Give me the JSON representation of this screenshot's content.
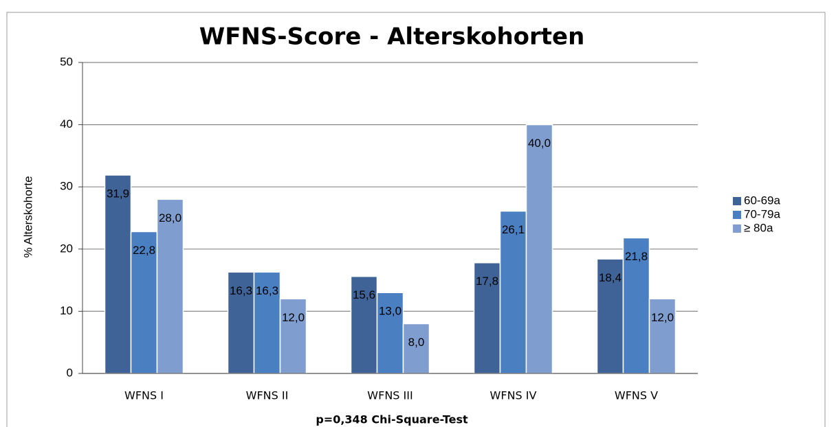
{
  "chart_data": {
    "type": "bar",
    "title": "WFNS-Score - Alterskohorten",
    "ylabel": "% Alterskohorte",
    "xlabel": "p=0,348 Chi-Square-Test",
    "categories": [
      "WFNS I",
      "WFNS II",
      "WFNS III",
      "WFNS IV",
      "WFNS V"
    ],
    "series": [
      {
        "name": "60-69a",
        "color": "#3f6397",
        "values": [
          31.9,
          16.3,
          15.6,
          17.8,
          18.4
        ],
        "value_labels": [
          "31,9",
          "16,3",
          "15,6",
          "17,8",
          "18,4"
        ]
      },
      {
        "name": "70-79a",
        "color": "#4a7fc1",
        "values": [
          22.8,
          16.3,
          13.0,
          26.1,
          21.8
        ],
        "value_labels": [
          "22,8",
          "16,3",
          "13,0",
          "26,1",
          "21,8"
        ]
      },
      {
        "name": "≥ 80a",
        "color": "#7f9ecf",
        "values": [
          28.0,
          12.0,
          8.0,
          40.0,
          12.0
        ],
        "value_labels": [
          "28,0",
          "12,0",
          "8,0",
          "40,0",
          "12,0"
        ]
      }
    ],
    "ylim": [
      0,
      50
    ],
    "yticks": [
      0,
      10,
      20,
      30,
      40,
      50
    ],
    "grid": true,
    "legend": "right"
  }
}
